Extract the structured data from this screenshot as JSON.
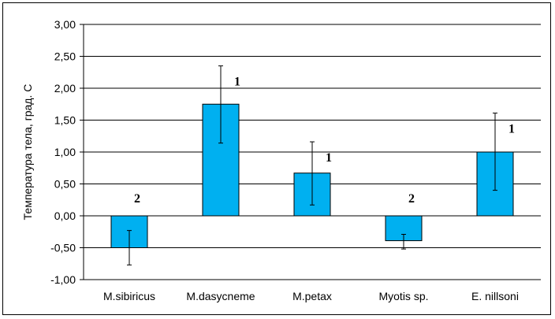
{
  "chart_data": {
    "type": "bar",
    "title": "",
    "xlabel": "",
    "ylabel": "Температура тела, град. С",
    "categories": [
      "M.sibiricus",
      "M.dasycneme",
      "M.petax",
      "Myotis sp.",
      "E. nillsoni"
    ],
    "values": [
      -0.5,
      1.75,
      0.67,
      -0.39,
      1.0
    ],
    "error_low": [
      -0.77,
      1.14,
      0.17,
      -0.52,
      0.4
    ],
    "error_high": [
      -0.23,
      2.35,
      1.16,
      -0.29,
      1.61
    ],
    "annotations": [
      "2",
      "1",
      "1",
      "2",
      "1"
    ],
    "ylim": [
      -1.0,
      3.0
    ],
    "yticks": [
      "-1,00",
      "-0,50",
      "0,00",
      "0,50",
      "1,00",
      "1,50",
      "2,00",
      "2,50",
      "3,00"
    ],
    "grid": true,
    "legend": "none",
    "colors": {
      "bar": "#00b0f0",
      "bar_stroke": "#000000",
      "grid": "#000000"
    }
  }
}
